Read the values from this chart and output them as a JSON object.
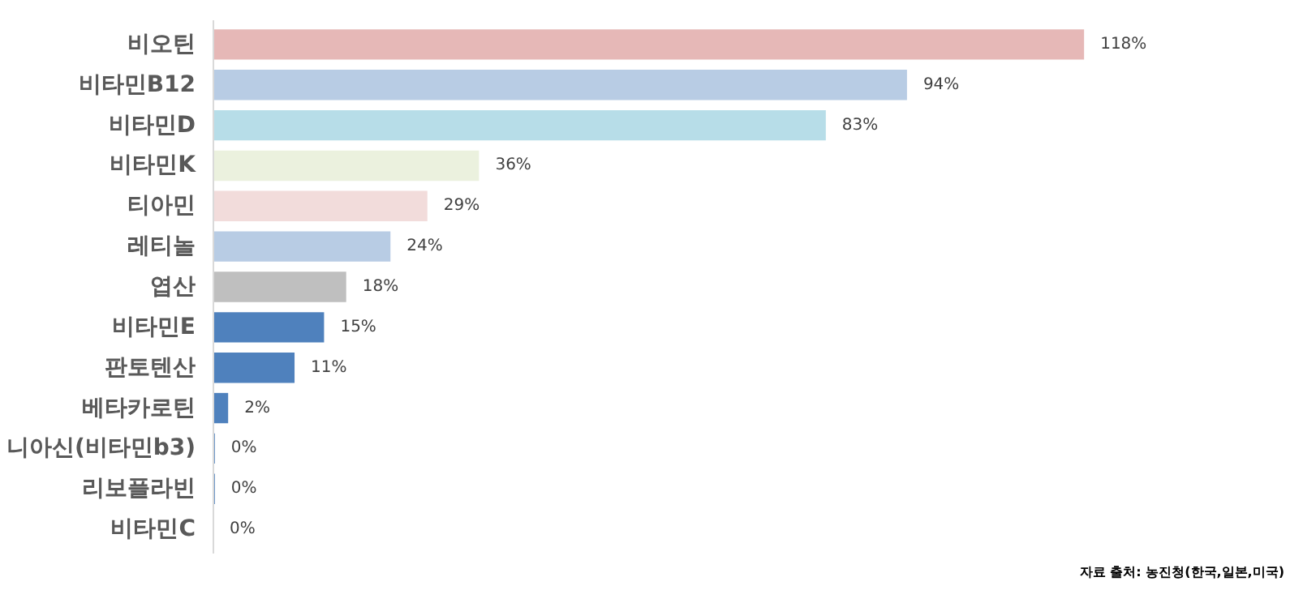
{
  "chart_data": {
    "type": "bar",
    "orientation": "horizontal",
    "categories": [
      "비오틴",
      "비타민B12",
      "비타민D",
      "비타민K",
      "티아민",
      "레티놀",
      "엽산",
      "비타민E",
      "판토텐산",
      "베타카로틴",
      "니아신(비타민b3)",
      "리보플라빈",
      "비타민C"
    ],
    "values": [
      118,
      94,
      83,
      36,
      29,
      24,
      18,
      15,
      11,
      2,
      0.2,
      0.2,
      0
    ],
    "value_labels": [
      "118%",
      "94%",
      "83%",
      "36%",
      "29%",
      "24%",
      "18%",
      "15%",
      "11%",
      "2%",
      "0%",
      "0%",
      "0%"
    ],
    "colors": [
      "#e6b8b7",
      "#b8cce4",
      "#b7dde8",
      "#ebf1de",
      "#f2dcdb",
      "#b8cce4",
      "#bfbfbf",
      "#4f81bd",
      "#4f81bd",
      "#4f81bd",
      "#4f81bd",
      "#4f81bd",
      "#4f81bd"
    ],
    "annotations": [
      "자료 출처: 농진청(한국,일본,미국)"
    ],
    "grid": false
  }
}
